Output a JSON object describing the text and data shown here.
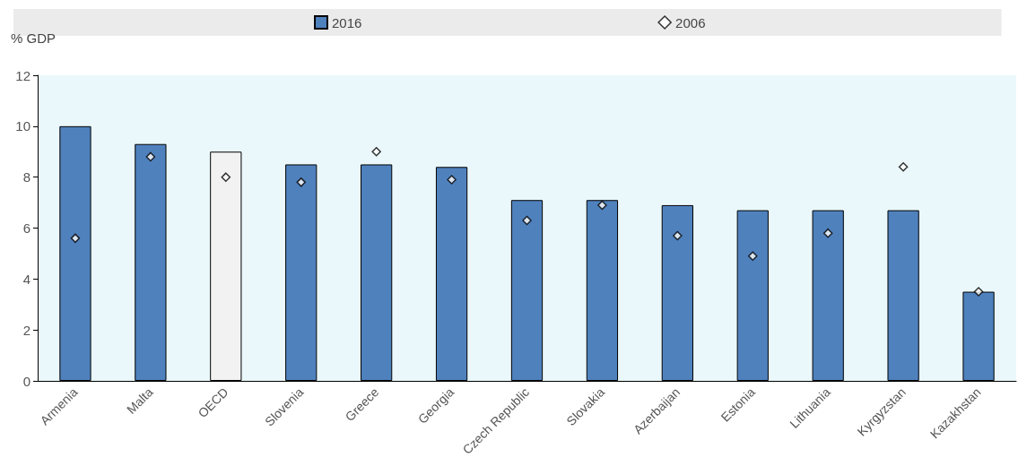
{
  "chart_data": {
    "type": "bar",
    "ylabel": "% GDP",
    "categories": [
      "Armenia",
      "Malta",
      "OECD",
      "Slovenia",
      "Greece",
      "Georgia",
      "Czech Republic",
      "Slovakia",
      "Azerbaijan",
      "Estonia",
      "Lithuania",
      "Kyrgyzstan",
      "Kazakhstan"
    ],
    "series": [
      {
        "name": "2016",
        "color": "#4f81bd",
        "colors": [
          "#4f81bd",
          "#4f81bd",
          "#f2f2f2",
          "#4f81bd",
          "#4f81bd",
          "#4f81bd",
          "#4f81bd",
          "#4f81bd",
          "#4f81bd",
          "#4f81bd",
          "#4f81bd",
          "#4f81bd",
          "#4f81bd"
        ],
        "values": [
          10.0,
          9.3,
          9.0,
          8.5,
          8.5,
          8.4,
          7.1,
          7.1,
          6.9,
          6.7,
          6.7,
          6.7,
          3.5
        ]
      },
      {
        "name": "2006",
        "type": "scatter",
        "color": "#ffffff",
        "values": [
          5.6,
          8.8,
          8.0,
          7.8,
          9.0,
          7.9,
          6.3,
          6.9,
          5.7,
          4.9,
          5.8,
          8.4,
          3.5
        ]
      }
    ],
    "ylim": [
      0,
      12
    ],
    "yticks": [
      0,
      2,
      4,
      6,
      8,
      10,
      12
    ],
    "grid": false,
    "legend": "top",
    "marker": "diamond"
  }
}
